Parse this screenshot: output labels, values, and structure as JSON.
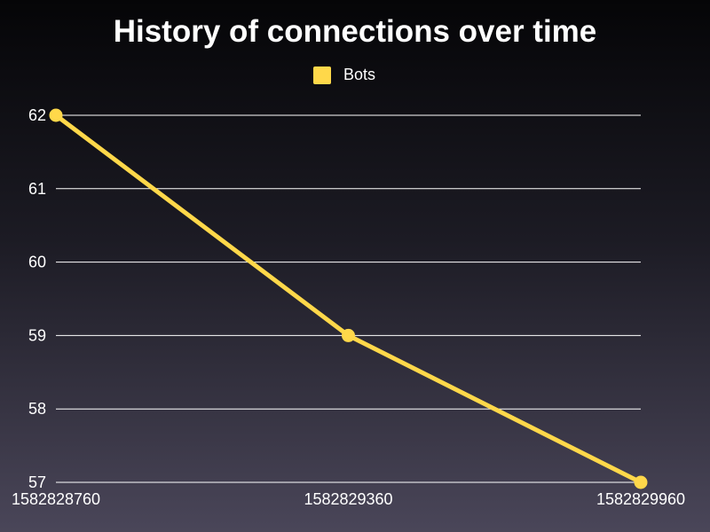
{
  "chart_data": {
    "type": "line",
    "title": "History of connections over time",
    "xlabel": "",
    "ylabel": "",
    "x": [
      "1582828760",
      "1582829360",
      "1582829960"
    ],
    "series": [
      {
        "name": "Bots",
        "values": [
          62,
          59,
          57
        ],
        "color": "#ffd84a"
      }
    ],
    "ylim": [
      57,
      62
    ],
    "yticks": [
      "57",
      "58",
      "59",
      "60",
      "61",
      "62"
    ],
    "grid": true,
    "legend_position": "top-center"
  }
}
